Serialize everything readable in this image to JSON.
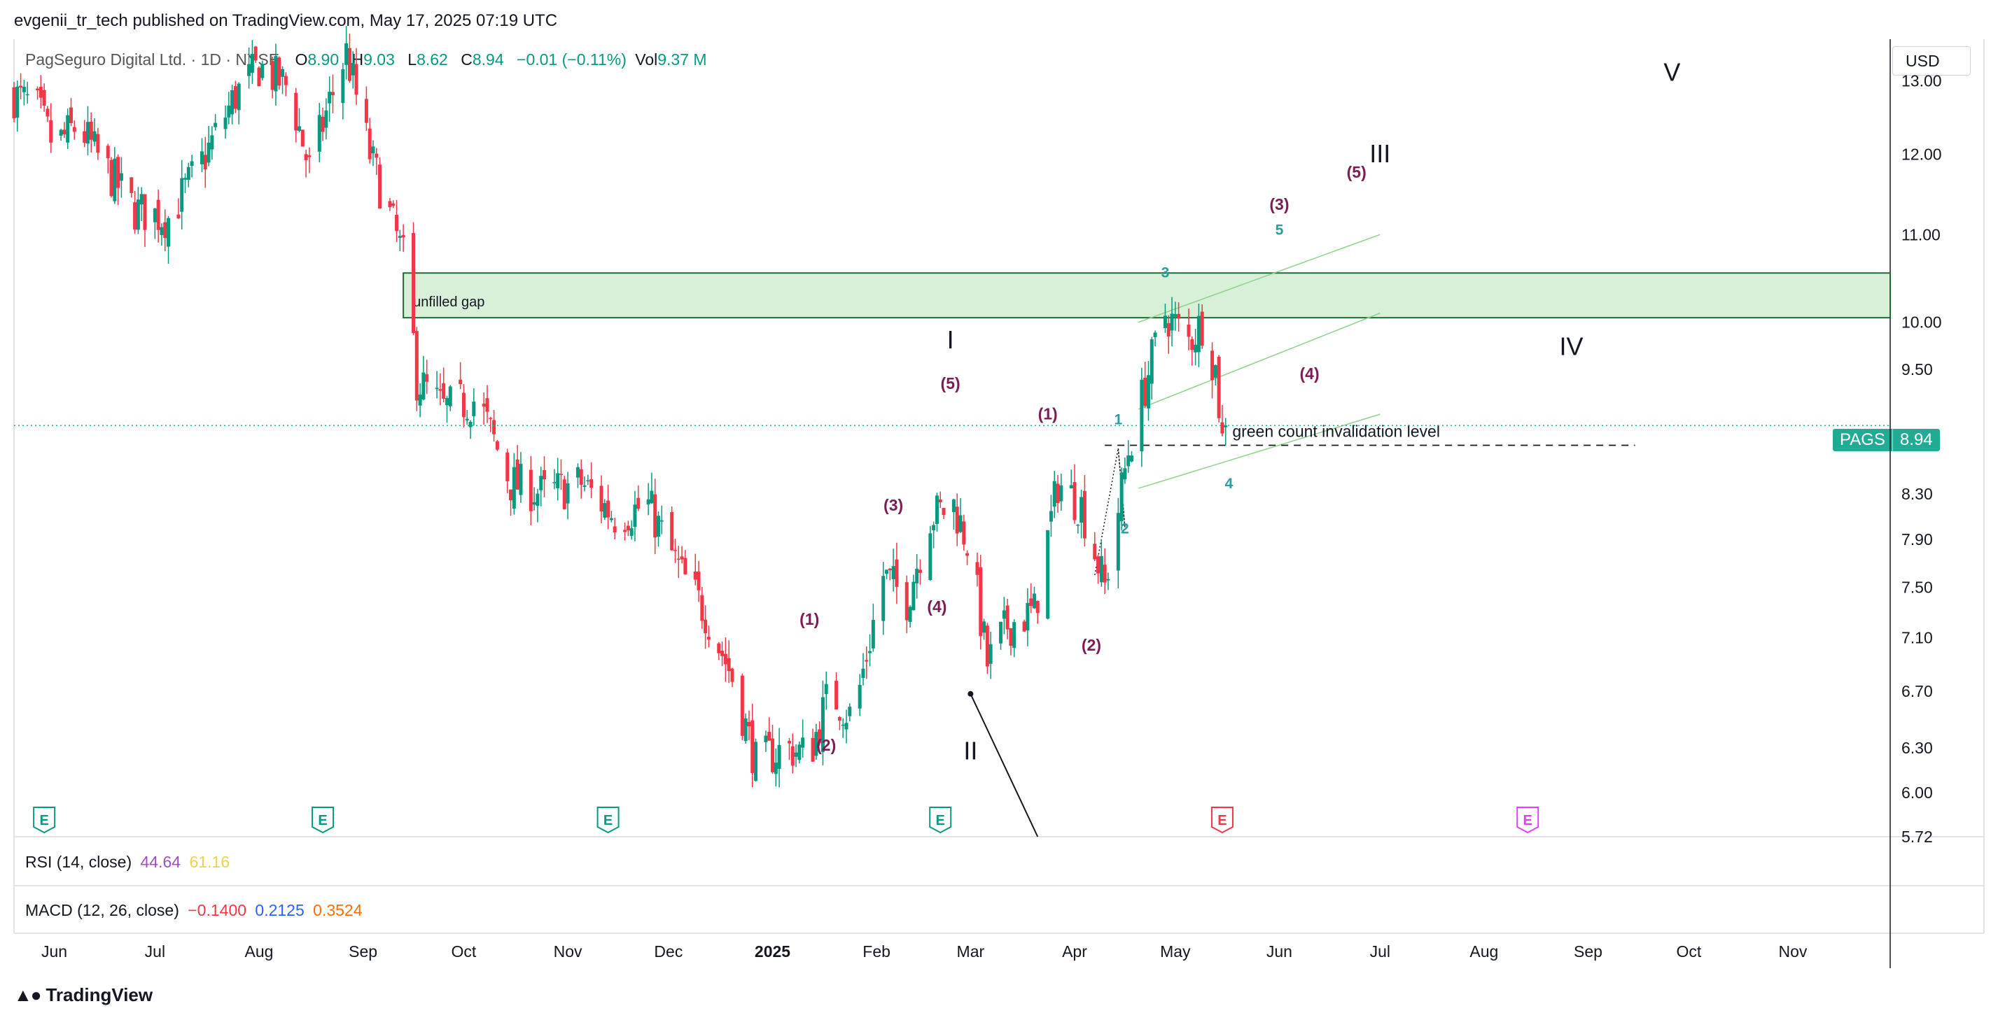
{
  "header": {
    "published": "evgenii_tr_tech published on TradingView.com, May 17, 2025 07:19 UTC"
  },
  "legend": {
    "symbol": "PagSeguro Digital Ltd. · 1D · NYSE",
    "open_label": "O",
    "open": "8.90",
    "high_label": "H",
    "high": "9.03",
    "low_label": "L",
    "low": "8.62",
    "close_label": "C",
    "close": "8.94",
    "change": "−0.01 (−0.11%)",
    "vol_label": "Vol",
    "vol": "9.37 M"
  },
  "currency": "USD",
  "price_tag": {
    "ticker": "PAGS",
    "price": "8.94"
  },
  "indicators": {
    "rsi_label": "RSI (14, close)",
    "rsi_v1": "44.64",
    "rsi_v2": "61.16",
    "macd_label": "MACD (12, 26, close)",
    "macd_v1": "−0.1400",
    "macd_v2": "0.2125",
    "macd_v3": "0.3524"
  },
  "branding": "TradingView",
  "colors": {
    "up": "#089981",
    "down": "#f23645",
    "wave": "#7b1c52",
    "teal": "#2a9d9f",
    "gap_fill": "#d8efd8",
    "gap_border": "#1d6b2f"
  },
  "chart_data": {
    "type": "candlestick",
    "symbol": "PAGS",
    "interval": "1D",
    "y_scale": "log",
    "ylim": [
      5.72,
      13.6
    ],
    "y_ticks": [
      13.0,
      12.0,
      11.0,
      10.0,
      9.5,
      8.3,
      7.9,
      7.5,
      7.1,
      6.7,
      6.3,
      6.0,
      5.72
    ],
    "y_tick_labels": [
      "13.00",
      "12.00",
      "11.00",
      "10.00",
      "9.50",
      "8.30",
      "7.90",
      "7.50",
      "7.10",
      "6.70",
      "6.30",
      "6.00",
      "5.72"
    ],
    "x_start": "2024-05-20",
    "x_end": "2025-11-30",
    "x_ticks": [
      {
        "date": "2024-06-01",
        "label": "Jun"
      },
      {
        "date": "2024-07-01",
        "label": "Jul"
      },
      {
        "date": "2024-08-01",
        "label": "Aug"
      },
      {
        "date": "2024-09-01",
        "label": "Sep"
      },
      {
        "date": "2024-10-01",
        "label": "Oct"
      },
      {
        "date": "2024-11-01",
        "label": "Nov"
      },
      {
        "date": "2024-12-01",
        "label": "Dec"
      },
      {
        "date": "2025-01-01",
        "label": "2025",
        "bold": true
      },
      {
        "date": "2025-02-01",
        "label": "Feb"
      },
      {
        "date": "2025-03-01",
        "label": "Mar"
      },
      {
        "date": "2025-04-01",
        "label": "Apr"
      },
      {
        "date": "2025-05-01",
        "label": "May"
      },
      {
        "date": "2025-06-01",
        "label": "Jun"
      },
      {
        "date": "2025-07-01",
        "label": "Jul"
      },
      {
        "date": "2025-08-01",
        "label": "Aug"
      },
      {
        "date": "2025-09-01",
        "label": "Sep"
      },
      {
        "date": "2025-10-01",
        "label": "Oct"
      },
      {
        "date": "2025-11-01",
        "label": "Nov"
      }
    ],
    "close_path": [
      {
        "date": "2024-05-20",
        "close": 12.8
      },
      {
        "date": "2024-05-27",
        "close": 12.6
      },
      {
        "date": "2024-06-01",
        "close": 12.1
      },
      {
        "date": "2024-06-08",
        "close": 12.4
      },
      {
        "date": "2024-06-15",
        "close": 11.9
      },
      {
        "date": "2024-06-25",
        "close": 11.3
      },
      {
        "date": "2024-07-05",
        "close": 11.2
      },
      {
        "date": "2024-07-15",
        "close": 11.9
      },
      {
        "date": "2024-07-25",
        "close": 12.8
      },
      {
        "date": "2024-08-01",
        "close": 13.2
      },
      {
        "date": "2024-08-10",
        "close": 12.9
      },
      {
        "date": "2024-08-16",
        "close": 11.8
      },
      {
        "date": "2024-08-22",
        "close": 12.7
      },
      {
        "date": "2024-08-27",
        "close": 13.4
      },
      {
        "date": "2024-09-03",
        "close": 12.0
      },
      {
        "date": "2024-09-10",
        "close": 11.1
      },
      {
        "date": "2024-09-14",
        "close": 10.6
      },
      {
        "date": "2024-09-17",
        "close": 9.4
      },
      {
        "date": "2024-09-25",
        "close": 9.1
      },
      {
        "date": "2024-10-05",
        "close": 9.2
      },
      {
        "date": "2024-10-15",
        "close": 8.4
      },
      {
        "date": "2024-10-25",
        "close": 8.3
      },
      {
        "date": "2024-11-05",
        "close": 8.4
      },
      {
        "date": "2024-11-15",
        "close": 8.1
      },
      {
        "date": "2024-11-25",
        "close": 8.2
      },
      {
        "date": "2024-12-05",
        "close": 7.6
      },
      {
        "date": "2024-12-12",
        "close": 7.3
      },
      {
        "date": "2024-12-20",
        "close": 6.8
      },
      {
        "date": "2024-12-27",
        "close": 6.2
      },
      {
        "date": "2025-01-05",
        "close": 6.3
      },
      {
        "date": "2025-01-12",
        "close": 6.25
      },
      {
        "date": "2025-01-18",
        "close": 6.7
      },
      {
        "date": "2025-01-25",
        "close": 6.5
      },
      {
        "date": "2025-02-03",
        "close": 7.6
      },
      {
        "date": "2025-02-10",
        "close": 7.4
      },
      {
        "date": "2025-02-17",
        "close": 8.1
      },
      {
        "date": "2025-02-24",
        "close": 8.2
      },
      {
        "date": "2025-03-01",
        "close": 7.8
      },
      {
        "date": "2025-03-06",
        "close": 6.9
      },
      {
        "date": "2025-03-12",
        "close": 7.2
      },
      {
        "date": "2025-03-20",
        "close": 7.3
      },
      {
        "date": "2025-03-27",
        "close": 8.4
      },
      {
        "date": "2025-04-03",
        "close": 8.2
      },
      {
        "date": "2025-04-10",
        "close": 7.5
      },
      {
        "date": "2025-04-17",
        "close": 8.7
      },
      {
        "date": "2025-04-24",
        "close": 9.6
      },
      {
        "date": "2025-04-28",
        "close": 10.1
      },
      {
        "date": "2025-05-05",
        "close": 9.8
      },
      {
        "date": "2025-05-09",
        "close": 10.0
      },
      {
        "date": "2025-05-13",
        "close": 9.5
      },
      {
        "date": "2025-05-15",
        "close": 8.8
      },
      {
        "date": "2025-05-16",
        "close": 8.94
      }
    ],
    "current_price": 8.94,
    "unfilled_gap": {
      "label": "unfilled gap",
      "from": "2024-09-13",
      "low": 10.05,
      "high": 10.55
    },
    "invalidation_level": {
      "label": "green count invalidation level",
      "price": 8.75,
      "from": "2025-04-12",
      "to": "2025-09-15"
    },
    "wave_labels": [
      {
        "text": "I",
        "date": "2025-02-23",
        "price": 9.72,
        "style": "major"
      },
      {
        "text": "II",
        "date": "2025-03-01",
        "price": 6.22,
        "style": "major"
      },
      {
        "text": "III",
        "date": "2025-07-01",
        "price": 11.9,
        "style": "major"
      },
      {
        "text": "IV",
        "date": "2025-08-27",
        "price": 9.65,
        "style": "major"
      },
      {
        "text": "V",
        "date": "2025-09-26",
        "price": 13.0,
        "style": "major"
      },
      {
        "text": "(1)",
        "date": "2025-01-12",
        "price": 7.2,
        "style": "minor"
      },
      {
        "text": "(2)",
        "date": "2025-01-17",
        "price": 6.28,
        "style": "minor"
      },
      {
        "text": "(3)",
        "date": "2025-02-06",
        "price": 8.15,
        "style": "minor"
      },
      {
        "text": "(4)",
        "date": "2025-02-19",
        "price": 7.3,
        "style": "minor"
      },
      {
        "text": "(5)",
        "date": "2025-02-23",
        "price": 9.3,
        "style": "minor"
      },
      {
        "text": "(1)",
        "date": "2025-03-24",
        "price": 9.0,
        "style": "minor"
      },
      {
        "text": "(2)",
        "date": "2025-04-06",
        "price": 7.0,
        "style": "minor"
      },
      {
        "text": "(3)",
        "date": "2025-06-01",
        "price": 11.3,
        "style": "minor"
      },
      {
        "text": "(4)",
        "date": "2025-06-10",
        "price": 9.4,
        "style": "minor"
      },
      {
        "text": "(5)",
        "date": "2025-06-24",
        "price": 11.7,
        "style": "minor"
      },
      {
        "text": "1",
        "date": "2025-04-14",
        "price": 8.95,
        "style": "teal"
      },
      {
        "text": "2",
        "date": "2025-04-16",
        "price": 7.95,
        "style": "teal"
      },
      {
        "text": "3",
        "date": "2025-04-28",
        "price": 10.5,
        "style": "teal"
      },
      {
        "text": "4",
        "date": "2025-05-17",
        "price": 8.35,
        "style": "teal"
      },
      {
        "text": "5",
        "date": "2025-06-01",
        "price": 11.0,
        "style": "teal"
      }
    ],
    "earnings_markers": [
      {
        "date": "2024-05-29",
        "status": "past"
      },
      {
        "date": "2024-08-20",
        "status": "past"
      },
      {
        "date": "2024-11-13",
        "status": "past"
      },
      {
        "date": "2025-02-20",
        "status": "past"
      },
      {
        "date": "2025-05-15",
        "status": "reported-down"
      },
      {
        "date": "2025-08-14",
        "status": "upcoming"
      }
    ]
  }
}
